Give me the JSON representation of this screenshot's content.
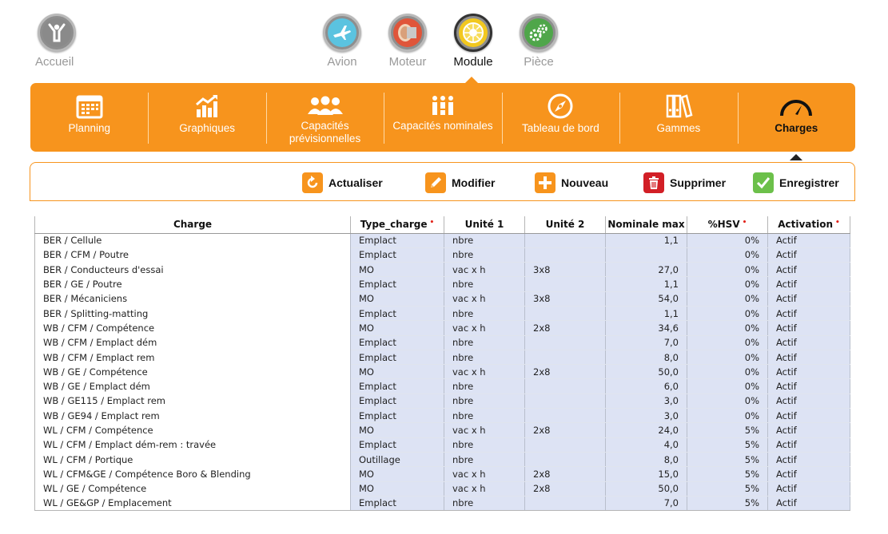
{
  "top_nav": {
    "home_label": "Accueil",
    "items": [
      {
        "label": "Avion",
        "icon": "airplane-icon"
      },
      {
        "label": "Moteur",
        "icon": "engine-icon"
      },
      {
        "label": "Module",
        "icon": "module-icon"
      },
      {
        "label": "Pièce",
        "icon": "gears-icon"
      }
    ],
    "active": "Module"
  },
  "module_tabs": [
    {
      "label": "Planning",
      "icon": "calendar-icon"
    },
    {
      "label": "Graphiques",
      "icon": "bar-chart-icon"
    },
    {
      "label": "Capacités prévisionnelles",
      "icon": "people-icon"
    },
    {
      "label": "Capacités nominales",
      "icon": "people-bars-icon"
    },
    {
      "label": "Tableau de bord",
      "icon": "compass-icon"
    },
    {
      "label": "Gammes",
      "icon": "binders-icon"
    },
    {
      "label": "Charges",
      "icon": "gauge-icon"
    }
  ],
  "active_tab": "Charges",
  "toolbar": {
    "refresh": "Actualiser",
    "edit": "Modifier",
    "new": "Nouveau",
    "delete": "Supprimer",
    "save": "Enregistrer"
  },
  "colors": {
    "accent": "#f7941d",
    "row_blue": "#dde3f4",
    "required": "#e2231a"
  },
  "table": {
    "columns": [
      "Charge",
      "Type_charge",
      "Unité 1",
      "Unité 2",
      "Nominale max",
      "%HSV",
      "Activation"
    ],
    "required_columns": [
      "Type_charge",
      "%HSV",
      "Activation"
    ],
    "rows": [
      [
        "BER / Cellule",
        "Emplact",
        "nbre",
        "",
        "1,1",
        "0%",
        "Actif"
      ],
      [
        "BER / CFM / Poutre",
        "Emplact",
        "nbre",
        "",
        "",
        "0%",
        "Actif"
      ],
      [
        "BER / Conducteurs d'essai",
        "MO",
        "vac x h",
        "3x8",
        "27,0",
        "0%",
        "Actif"
      ],
      [
        "BER / GE / Poutre",
        "Emplact",
        "nbre",
        "",
        "1,1",
        "0%",
        "Actif"
      ],
      [
        "BER / Mécaniciens",
        "MO",
        "vac x h",
        "3x8",
        "54,0",
        "0%",
        "Actif"
      ],
      [
        "BER / Splitting-matting",
        "Emplact",
        "nbre",
        "",
        "1,1",
        "0%",
        "Actif"
      ],
      [
        "WB / CFM / Compétence",
        "MO",
        "vac x h",
        "2x8",
        "34,6",
        "0%",
        "Actif"
      ],
      [
        "WB / CFM / Emplact dém",
        "Emplact",
        "nbre",
        "",
        "7,0",
        "0%",
        "Actif"
      ],
      [
        "WB / CFM / Emplact rem",
        "Emplact",
        "nbre",
        "",
        "8,0",
        "0%",
        "Actif"
      ],
      [
        "WB / GE / Compétence",
        "MO",
        "vac x h",
        "2x8",
        "50,0",
        "0%",
        "Actif"
      ],
      [
        "WB / GE / Emplact dém",
        "Emplact",
        "nbre",
        "",
        "6,0",
        "0%",
        "Actif"
      ],
      [
        "WB / GE115 / Emplact rem",
        "Emplact",
        "nbre",
        "",
        "3,0",
        "0%",
        "Actif"
      ],
      [
        "WB / GE94 / Emplact rem",
        "Emplact",
        "nbre",
        "",
        "3,0",
        "0%",
        "Actif"
      ],
      [
        "WL / CFM / Compétence",
        "MO",
        "vac x h",
        "2x8",
        "24,0",
        "5%",
        "Actif"
      ],
      [
        "WL / CFM / Emplact dém-rem : travée",
        "Emplact",
        "nbre",
        "",
        "4,0",
        "5%",
        "Actif"
      ],
      [
        "WL / CFM / Portique",
        "Outillage",
        "nbre",
        "",
        "8,0",
        "5%",
        "Actif"
      ],
      [
        "WL / CFM&GE / Compétence Boro & Blending",
        "MO",
        "vac x h",
        "2x8",
        "15,0",
        "5%",
        "Actif"
      ],
      [
        "WL / GE / Compétence",
        "MO",
        "vac x h",
        "2x8",
        "50,0",
        "5%",
        "Actif"
      ],
      [
        "WL / GE&GP / Emplacement",
        "Emplact",
        "nbre",
        "",
        "7,0",
        "5%",
        "Actif"
      ]
    ]
  }
}
